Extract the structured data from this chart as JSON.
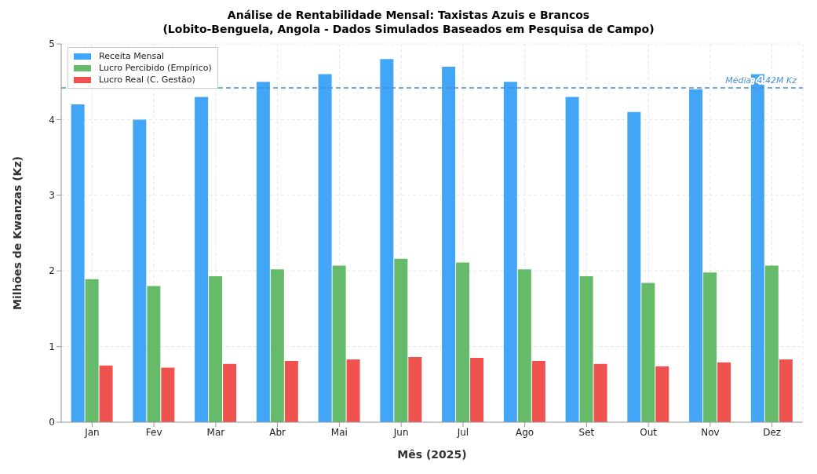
{
  "chart_data": {
    "type": "bar",
    "title": "Análise de Rentabilidade Mensal: Taxistas Azuis e Brancos\n(Lobito-Benguela, Angola - Dados Simulados Baseados em Pesquisa de Campo)",
    "xlabel": "Mês (2025)",
    "ylabel": "Milhões de Kwanzas (Kz)",
    "categories": [
      "Jan",
      "Fev",
      "Mar",
      "Abr",
      "Mai",
      "Jun",
      "Jul",
      "Ago",
      "Set",
      "Out",
      "Nov",
      "Dez"
    ],
    "series": [
      {
        "name": "Receita Mensal",
        "color": "#42a5f5",
        "values": [
          4.2,
          4.0,
          4.3,
          4.5,
          4.6,
          4.8,
          4.7,
          4.5,
          4.3,
          4.1,
          4.4,
          4.6
        ]
      },
      {
        "name": "Lucro Percibido (Empírico)",
        "color": "#66bb6a",
        "values": [
          1.89,
          1.8,
          1.93,
          2.02,
          2.07,
          2.16,
          2.11,
          2.02,
          1.93,
          1.84,
          1.98,
          2.07
        ]
      },
      {
        "name": "Lucro Real (C. Gestão)",
        "color": "#ef5350",
        "values": [
          0.75,
          0.72,
          0.77,
          0.81,
          0.83,
          0.86,
          0.85,
          0.81,
          0.77,
          0.74,
          0.79,
          0.83
        ]
      }
    ],
    "ylim": [
      0,
      5
    ],
    "yticks": [
      0,
      1,
      2,
      3,
      4,
      5
    ],
    "grid": true,
    "legend": "top left",
    "ref_lines": [
      {
        "axis": "y",
        "value": 4.42,
        "label": "Média: 4.42M Kz",
        "color": "#4a90d9",
        "line_style": "dashed"
      }
    ]
  }
}
